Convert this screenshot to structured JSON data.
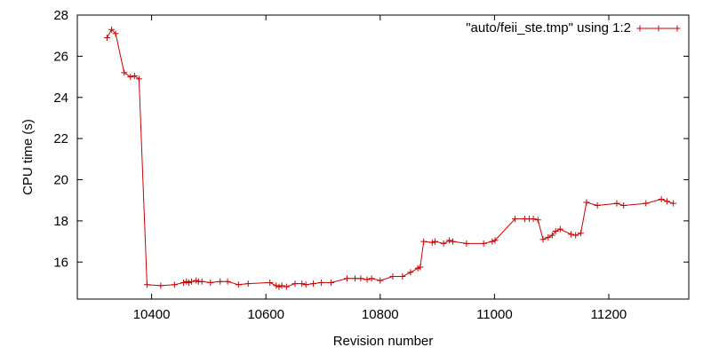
{
  "chart_data": {
    "type": "line",
    "title": "",
    "xlabel": "Revision number",
    "ylabel": "CPU time (s)",
    "xlim": [
      10270,
      11340
    ],
    "ylim": [
      14.2,
      28
    ],
    "x_ticks": [
      10400,
      10600,
      10800,
      11000,
      11200
    ],
    "y_ticks": [
      16,
      18,
      20,
      22,
      24,
      26,
      28
    ],
    "grid": false,
    "legend_position": "top-right",
    "series": [
      {
        "name": "\"auto/feii_ste.tmp\" using 1:2",
        "color": "#cc0000",
        "marker": "plus",
        "points": [
          [
            10322,
            26.9
          ],
          [
            10330,
            27.3
          ],
          [
            10337,
            27.1
          ],
          [
            10352,
            25.2
          ],
          [
            10363,
            25.0
          ],
          [
            10370,
            25.05
          ],
          [
            10378,
            24.9
          ],
          [
            10392,
            14.9
          ],
          [
            10416,
            14.85
          ],
          [
            10440,
            14.9
          ],
          [
            10456,
            15.0
          ],
          [
            10461,
            15.05
          ],
          [
            10465,
            15.0
          ],
          [
            10470,
            15.05
          ],
          [
            10478,
            15.1
          ],
          [
            10482,
            15.05
          ],
          [
            10488,
            15.05
          ],
          [
            10503,
            15.0
          ],
          [
            10520,
            15.05
          ],
          [
            10533,
            15.05
          ],
          [
            10552,
            14.9
          ],
          [
            10569,
            14.95
          ],
          [
            10607,
            15.0
          ],
          [
            10618,
            14.85
          ],
          [
            10623,
            14.8
          ],
          [
            10628,
            14.85
          ],
          [
            10636,
            14.8
          ],
          [
            10651,
            14.95
          ],
          [
            10663,
            14.95
          ],
          [
            10670,
            14.9
          ],
          [
            10683,
            14.95
          ],
          [
            10697,
            15.0
          ],
          [
            10714,
            15.0
          ],
          [
            10742,
            15.2
          ],
          [
            10756,
            15.2
          ],
          [
            10766,
            15.2
          ],
          [
            10777,
            15.15
          ],
          [
            10785,
            15.2
          ],
          [
            10800,
            15.1
          ],
          [
            10822,
            15.3
          ],
          [
            10839,
            15.3
          ],
          [
            10853,
            15.5
          ],
          [
            10866,
            15.7
          ],
          [
            10870,
            15.75
          ],
          [
            10876,
            17.0
          ],
          [
            10891,
            16.95
          ],
          [
            10896,
            17.0
          ],
          [
            10911,
            16.9
          ],
          [
            10921,
            17.05
          ],
          [
            10927,
            17.0
          ],
          [
            10951,
            16.9
          ],
          [
            10981,
            16.9
          ],
          [
            10996,
            17.0
          ],
          [
            11001,
            17.05
          ],
          [
            11036,
            18.1
          ],
          [
            11053,
            18.1
          ],
          [
            11061,
            18.1
          ],
          [
            11068,
            18.1
          ],
          [
            11076,
            18.05
          ],
          [
            11085,
            17.1
          ],
          [
            11094,
            17.2
          ],
          [
            11101,
            17.3
          ],
          [
            11107,
            17.5
          ],
          [
            11115,
            17.6
          ],
          [
            11134,
            17.35
          ],
          [
            11142,
            17.3
          ],
          [
            11151,
            17.4
          ],
          [
            11161,
            18.9
          ],
          [
            11180,
            18.75
          ],
          [
            11214,
            18.85
          ],
          [
            11226,
            18.75
          ],
          [
            11265,
            18.85
          ],
          [
            11292,
            19.05
          ],
          [
            11302,
            18.95
          ],
          [
            11313,
            18.85
          ]
        ]
      }
    ]
  }
}
